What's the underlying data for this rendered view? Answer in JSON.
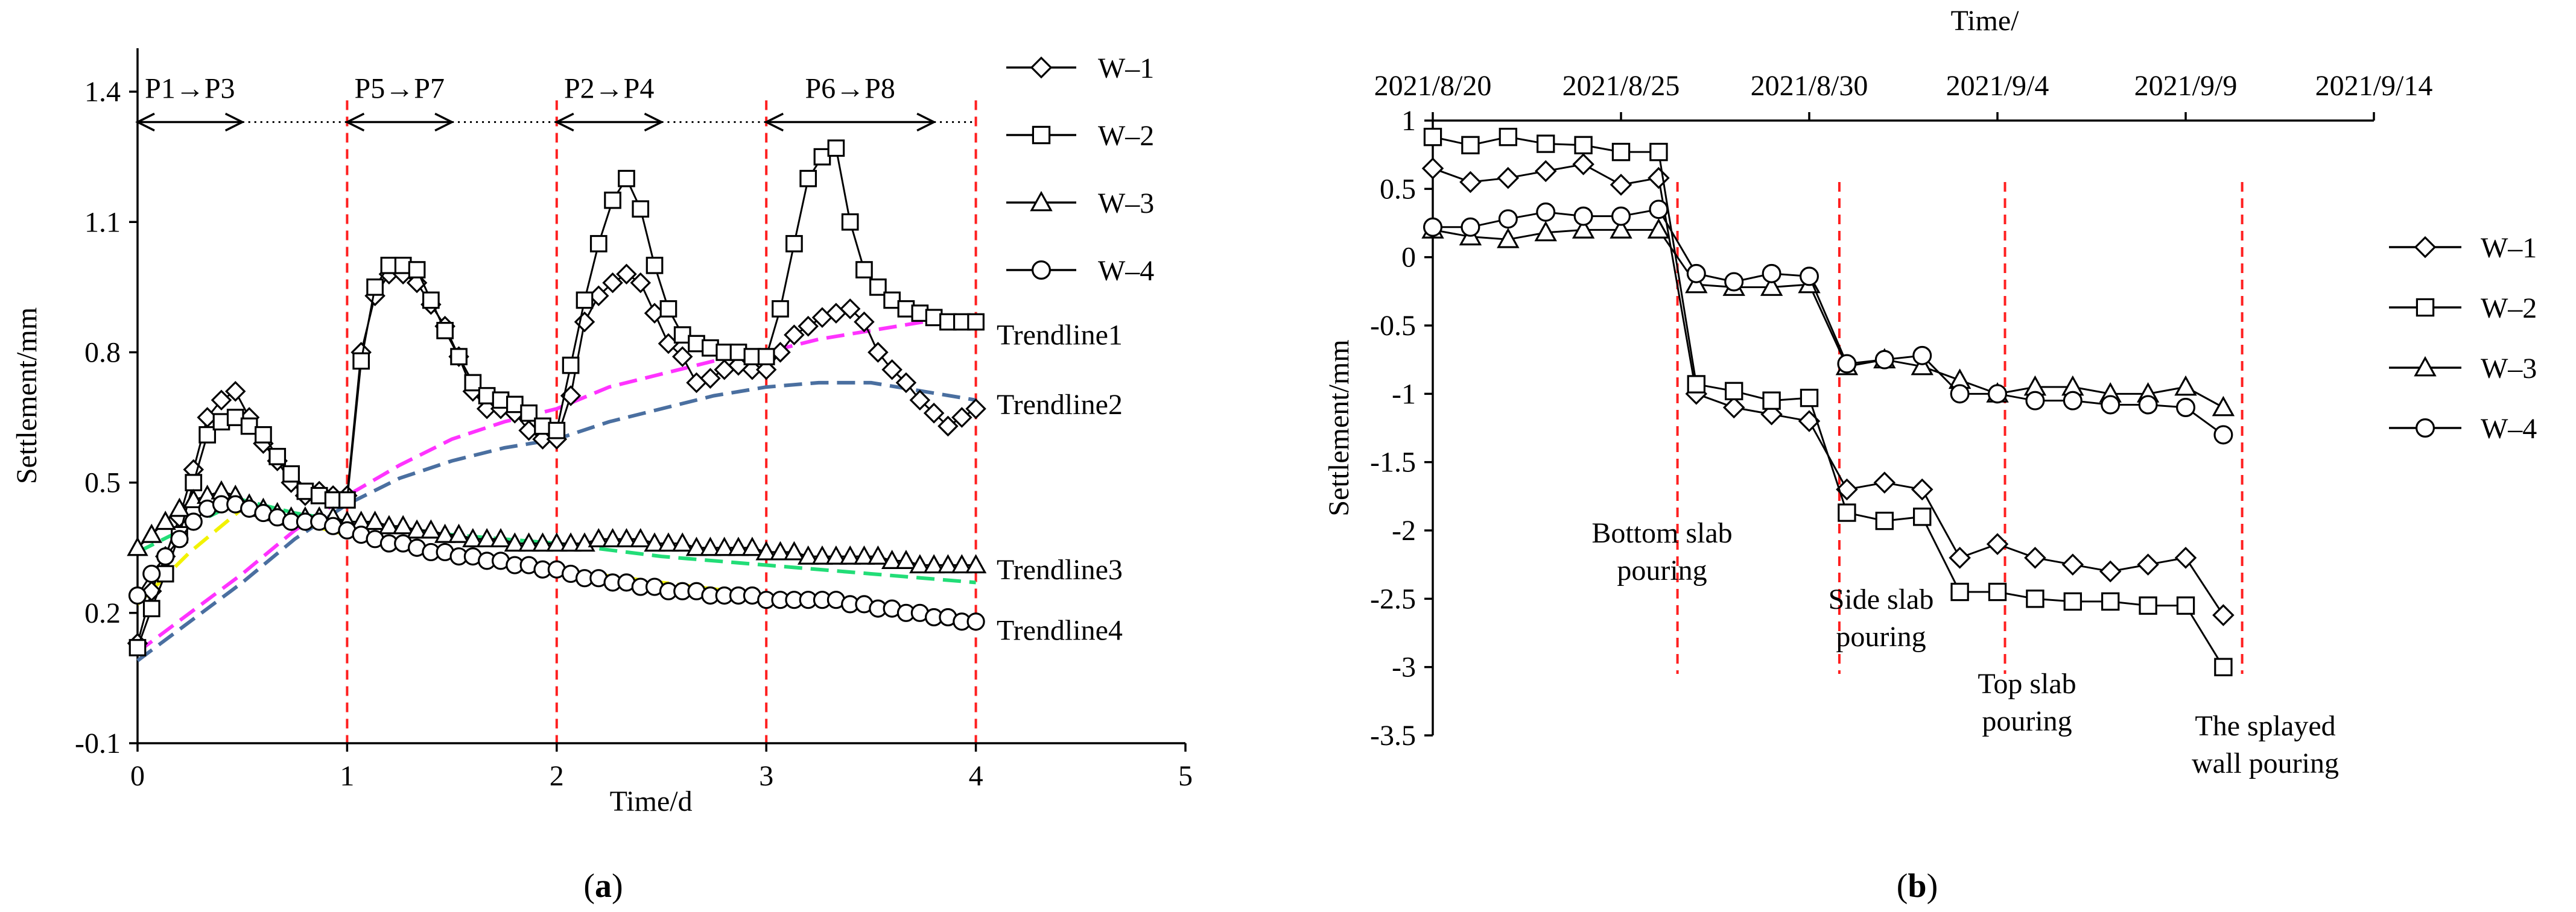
{
  "colors": {
    "series": "#000000",
    "event_line": "#ff1f1f",
    "trendline1": "#ff33ff",
    "trendline2": "#4a6fa0",
    "trendline3": "#22dd77",
    "trendline4": "#f2f200"
  },
  "chart_data": [
    {
      "type": "line",
      "panel": "a",
      "panel_label": {
        "open": "(",
        "letter": "a",
        "close": ")"
      },
      "xlabel": "Time/d",
      "ylabel": "Settlement/mm",
      "xlim": [
        0,
        5
      ],
      "ylim": [
        -0.1,
        1.5
      ],
      "xticks": [
        "0",
        "1",
        "2",
        "3",
        "4",
        "5"
      ],
      "xtick_values": [
        0,
        1,
        2,
        3,
        4,
        5
      ],
      "yticks": [
        "-0.1",
        "0.2",
        "0.5",
        "0.8",
        "1.1",
        "1.4"
      ],
      "ytick_values": [
        -0.1,
        0.2,
        0.5,
        0.8,
        1.1,
        1.4
      ],
      "event_lines_x": [
        1,
        2,
        3,
        4
      ],
      "phases": [
        {
          "label": "P1→P3",
          "x_start": 0,
          "x_arrow_end": 0.5,
          "x_dot_end": 1
        },
        {
          "label": "P5→P7",
          "x_start": 1,
          "x_arrow_end": 1.5,
          "x_dot_end": 2
        },
        {
          "label": "P2→P4",
          "x_start": 2,
          "x_arrow_end": 2.5,
          "x_dot_end": 3
        },
        {
          "label": "P6→P8",
          "x_start": 3,
          "x_arrow_end": 3.8,
          "x_dot_end": 4
        }
      ],
      "phase_y": 1.33,
      "series": [
        {
          "name": "W–1",
          "marker": "diamond",
          "x": [
            0,
            0.067,
            0.133,
            0.2,
            0.267,
            0.333,
            0.4,
            0.467,
            0.533,
            0.6,
            0.667,
            0.733,
            0.8,
            0.867,
            0.933,
            1,
            1.067,
            1.133,
            1.2,
            1.267,
            1.333,
            1.4,
            1.467,
            1.533,
            1.6,
            1.667,
            1.733,
            1.8,
            1.867,
            1.933,
            2,
            2.067,
            2.133,
            2.2,
            2.267,
            2.333,
            2.4,
            2.467,
            2.533,
            2.6,
            2.667,
            2.733,
            2.8,
            2.867,
            2.933,
            3,
            3.067,
            3.133,
            3.2,
            3.267,
            3.333,
            3.4,
            3.467,
            3.533,
            3.6,
            3.667,
            3.733,
            3.8,
            3.867,
            3.933,
            4
          ],
          "y": [
            0.13,
            0.25,
            0.33,
            0.42,
            0.53,
            0.65,
            0.69,
            0.71,
            0.65,
            0.59,
            0.55,
            0.5,
            0.47,
            0.48,
            0.47,
            0.47,
            0.8,
            0.93,
            0.98,
            0.98,
            0.96,
            0.91,
            0.86,
            0.79,
            0.71,
            0.67,
            0.67,
            0.66,
            0.62,
            0.6,
            0.6,
            0.7,
            0.87,
            0.93,
            0.96,
            0.98,
            0.96,
            0.89,
            0.82,
            0.79,
            0.73,
            0.74,
            0.76,
            0.77,
            0.76,
            0.76,
            0.8,
            0.84,
            0.86,
            0.88,
            0.89,
            0.9,
            0.87,
            0.8,
            0.76,
            0.73,
            0.69,
            0.66,
            0.63,
            0.65,
            0.67
          ]
        },
        {
          "name": "W–2",
          "marker": "square",
          "x": [
            0,
            0.067,
            0.133,
            0.2,
            0.267,
            0.333,
            0.4,
            0.467,
            0.533,
            0.6,
            0.667,
            0.733,
            0.8,
            0.867,
            0.933,
            1,
            1.067,
            1.133,
            1.2,
            1.267,
            1.333,
            1.4,
            1.467,
            1.533,
            1.6,
            1.667,
            1.733,
            1.8,
            1.867,
            1.933,
            2,
            2.067,
            2.133,
            2.2,
            2.267,
            2.333,
            2.4,
            2.467,
            2.533,
            2.6,
            2.667,
            2.733,
            2.8,
            2.867,
            2.933,
            3,
            3.067,
            3.133,
            3.2,
            3.267,
            3.333,
            3.4,
            3.467,
            3.533,
            3.6,
            3.667,
            3.733,
            3.8,
            3.867,
            3.933,
            4
          ],
          "y": [
            0.12,
            0.21,
            0.29,
            0.38,
            0.5,
            0.61,
            0.64,
            0.65,
            0.63,
            0.61,
            0.56,
            0.52,
            0.48,
            0.47,
            0.46,
            0.46,
            0.78,
            0.95,
            1.0,
            1.0,
            0.99,
            0.92,
            0.85,
            0.79,
            0.73,
            0.7,
            0.69,
            0.68,
            0.66,
            0.63,
            0.62,
            0.77,
            0.92,
            1.05,
            1.15,
            1.2,
            1.13,
            1.0,
            0.9,
            0.84,
            0.82,
            0.81,
            0.8,
            0.8,
            0.79,
            0.79,
            0.9,
            1.05,
            1.2,
            1.25,
            1.27,
            1.1,
            0.99,
            0.95,
            0.92,
            0.9,
            0.89,
            0.88,
            0.87,
            0.87,
            0.87
          ]
        },
        {
          "name": "W–3",
          "marker": "triangle",
          "x": [
            0,
            0.067,
            0.133,
            0.2,
            0.267,
            0.333,
            0.4,
            0.467,
            0.533,
            0.6,
            0.667,
            0.733,
            0.8,
            0.867,
            0.933,
            1,
            1.067,
            1.133,
            1.2,
            1.267,
            1.333,
            1.4,
            1.467,
            1.533,
            1.6,
            1.667,
            1.733,
            1.8,
            1.867,
            1.933,
            2,
            2.067,
            2.133,
            2.2,
            2.267,
            2.333,
            2.4,
            2.467,
            2.533,
            2.6,
            2.667,
            2.733,
            2.8,
            2.867,
            2.933,
            3,
            3.067,
            3.133,
            3.2,
            3.267,
            3.333,
            3.4,
            3.467,
            3.533,
            3.6,
            3.667,
            3.733,
            3.8,
            3.867,
            3.933,
            4
          ],
          "y": [
            0.35,
            0.38,
            0.41,
            0.44,
            0.46,
            0.47,
            0.48,
            0.47,
            0.45,
            0.44,
            0.43,
            0.42,
            0.42,
            0.42,
            0.42,
            0.41,
            0.41,
            0.41,
            0.4,
            0.4,
            0.39,
            0.39,
            0.38,
            0.38,
            0.37,
            0.37,
            0.37,
            0.36,
            0.36,
            0.36,
            0.36,
            0.36,
            0.36,
            0.37,
            0.37,
            0.37,
            0.37,
            0.36,
            0.36,
            0.36,
            0.35,
            0.35,
            0.35,
            0.35,
            0.35,
            0.34,
            0.34,
            0.34,
            0.33,
            0.33,
            0.33,
            0.33,
            0.33,
            0.33,
            0.32,
            0.32,
            0.31,
            0.31,
            0.31,
            0.31,
            0.31
          ]
        },
        {
          "name": "W–4",
          "marker": "circle",
          "x": [
            0,
            0.067,
            0.133,
            0.2,
            0.267,
            0.333,
            0.4,
            0.467,
            0.533,
            0.6,
            0.667,
            0.733,
            0.8,
            0.867,
            0.933,
            1,
            1.067,
            1.133,
            1.2,
            1.267,
            1.333,
            1.4,
            1.467,
            1.533,
            1.6,
            1.667,
            1.733,
            1.8,
            1.867,
            1.933,
            2,
            2.067,
            2.133,
            2.2,
            2.267,
            2.333,
            2.4,
            2.467,
            2.533,
            2.6,
            2.667,
            2.733,
            2.8,
            2.867,
            2.933,
            3,
            3.067,
            3.133,
            3.2,
            3.267,
            3.333,
            3.4,
            3.467,
            3.533,
            3.6,
            3.667,
            3.733,
            3.8,
            3.867,
            3.933,
            4
          ],
          "y": [
            0.24,
            0.29,
            0.33,
            0.37,
            0.41,
            0.44,
            0.45,
            0.45,
            0.44,
            0.43,
            0.42,
            0.41,
            0.41,
            0.41,
            0.4,
            0.39,
            0.38,
            0.37,
            0.36,
            0.36,
            0.35,
            0.34,
            0.34,
            0.33,
            0.33,
            0.32,
            0.32,
            0.31,
            0.31,
            0.3,
            0.3,
            0.29,
            0.28,
            0.28,
            0.27,
            0.27,
            0.26,
            0.26,
            0.25,
            0.25,
            0.25,
            0.24,
            0.24,
            0.24,
            0.24,
            0.23,
            0.23,
            0.23,
            0.23,
            0.23,
            0.23,
            0.22,
            0.22,
            0.21,
            0.21,
            0.2,
            0.2,
            0.19,
            0.19,
            0.18,
            0.18
          ]
        }
      ],
      "trendlines": [
        {
          "name": "Trendline1",
          "color_key": "trendline1",
          "x": [
            0,
            0.25,
            0.5,
            0.75,
            1,
            1.25,
            1.5,
            1.75,
            2,
            2.25,
            2.5,
            2.75,
            3,
            3.25,
            3.5,
            3.75,
            4
          ],
          "y": [
            0.11,
            0.2,
            0.29,
            0.39,
            0.47,
            0.54,
            0.6,
            0.64,
            0.67,
            0.72,
            0.75,
            0.78,
            0.8,
            0.83,
            0.85,
            0.87,
            0.88
          ]
        },
        {
          "name": "Trendline2",
          "color_key": "trendline2",
          "x": [
            0,
            0.25,
            0.5,
            0.75,
            1,
            1.25,
            1.5,
            1.75,
            2,
            2.25,
            2.5,
            2.75,
            3,
            3.25,
            3.5,
            3.75,
            4
          ],
          "y": [
            0.09,
            0.18,
            0.27,
            0.37,
            0.45,
            0.51,
            0.55,
            0.58,
            0.6,
            0.64,
            0.67,
            0.7,
            0.72,
            0.73,
            0.73,
            0.71,
            0.69
          ]
        },
        {
          "name": "Trendline3",
          "color_key": "trendline3",
          "x": [
            0,
            0.25,
            0.5,
            0.75,
            1,
            1.5,
            2,
            2.5,
            3,
            3.5,
            4
          ],
          "y": [
            0.34,
            0.4,
            0.46,
            0.43,
            0.41,
            0.38,
            0.36,
            0.33,
            0.31,
            0.29,
            0.27
          ]
        },
        {
          "name": "Trendline4",
          "color_key": "trendline4",
          "x": [
            0,
            0.25,
            0.5,
            0.75,
            1,
            1.5,
            2,
            2.5,
            3,
            3.5,
            4
          ],
          "y": [
            0.22,
            0.34,
            0.44,
            0.41,
            0.38,
            0.34,
            0.3,
            0.27,
            0.24,
            0.21,
            0.18
          ]
        }
      ],
      "trend_labels": [
        {
          "text": "Trendline1",
          "anchor_y": 0.84
        },
        {
          "text": "Trendline2",
          "anchor_y": 0.68
        },
        {
          "text": "Trendline3",
          "anchor_y": 0.3
        },
        {
          "text": "Trendline4",
          "anchor_y": 0.16
        }
      ],
      "legend": [
        "W–1",
        "W–2",
        "W–3",
        "W–4"
      ],
      "legend_position": "top-right outside"
    },
    {
      "type": "line",
      "panel": "b",
      "panel_label": {
        "open": "(",
        "letter": "b",
        "close": ")"
      },
      "xlabel": "Time/",
      "ylabel": "Settlement/mm",
      "x_axis_position": "top",
      "x_start_date": "2021/8/20",
      "xlim_days": [
        0,
        25
      ],
      "ylim": [
        -3.5,
        1
      ],
      "xticks": [
        "2021/8/20",
        "2021/8/25",
        "2021/8/30",
        "2021/9/4",
        "2021/9/9",
        "2021/9/14"
      ],
      "xtick_days": [
        0,
        5,
        10,
        15,
        20,
        25
      ],
      "yticks": [
        "1",
        "0.5",
        "0",
        "-0.5",
        "-1",
        "-1.5",
        "-2",
        "-2.5",
        "-3",
        "-3.5"
      ],
      "ytick_values": [
        1,
        0.5,
        0,
        -0.5,
        -1,
        -1.5,
        -2,
        -2.5,
        -3,
        -3.5
      ],
      "event_lines_day": [
        6.5,
        10.8,
        15.2,
        21.5
      ],
      "events": [
        {
          "lines": [
            "Bottom slab",
            "pouring"
          ]
        },
        {
          "lines": [
            "Side slab",
            "pouring"
          ]
        },
        {
          "lines": [
            "Top slab",
            "pouring"
          ]
        },
        {
          "lines": [
            "The splayed",
            "wall pouring"
          ]
        }
      ],
      "series": [
        {
          "name": "W–1",
          "marker": "diamond",
          "x": [
            0,
            1,
            2,
            3,
            4,
            5,
            6,
            7,
            8,
            9,
            10,
            11,
            12,
            13,
            14,
            15,
            16,
            17,
            18,
            19,
            20,
            21,
            22
          ],
          "y": [
            0.65,
            0.55,
            0.58,
            0.63,
            0.68,
            0.53,
            0.58,
            -1.0,
            -1.1,
            -1.15,
            -1.2,
            -1.7,
            -1.65,
            -1.7,
            -2.2,
            -2.1,
            -2.2,
            -2.25,
            -2.3,
            -2.25,
            -2.2,
            -2.62,
            null
          ]
        },
        {
          "name": "W–2",
          "marker": "square",
          "x": [
            0,
            1,
            2,
            3,
            4,
            5,
            6,
            7,
            8,
            9,
            10,
            11,
            12,
            13,
            14,
            15,
            16,
            17,
            18,
            19,
            20,
            21,
            22
          ],
          "y": [
            0.88,
            0.82,
            0.88,
            0.83,
            0.82,
            0.77,
            0.77,
            -0.93,
            -0.98,
            -1.05,
            -1.03,
            -1.87,
            -1.93,
            -1.9,
            -2.45,
            -2.45,
            -2.5,
            -2.52,
            -2.52,
            -2.55,
            -2.55,
            -3.0,
            null
          ]
        },
        {
          "name": "W–3",
          "marker": "triangle",
          "x": [
            0,
            1,
            2,
            3,
            4,
            5,
            6,
            7,
            8,
            9,
            10,
            11,
            12,
            13,
            14,
            15,
            16,
            17,
            18,
            19,
            20,
            21,
            22
          ],
          "y": [
            0.2,
            0.15,
            0.13,
            0.18,
            0.2,
            0.2,
            0.2,
            -0.2,
            -0.22,
            -0.22,
            -0.2,
            -0.8,
            -0.75,
            -0.8,
            -0.9,
            -1.0,
            -0.95,
            -0.95,
            -1.0,
            -1.0,
            -0.95,
            -1.1,
            null
          ]
        },
        {
          "name": "W–4",
          "marker": "circle",
          "x": [
            0,
            1,
            2,
            3,
            4,
            5,
            6,
            7,
            8,
            9,
            10,
            11,
            12,
            13,
            14,
            15,
            16,
            17,
            18,
            19,
            20,
            21,
            22
          ],
          "y": [
            0.22,
            0.22,
            0.28,
            0.33,
            0.3,
            0.3,
            0.35,
            -0.12,
            -0.18,
            -0.12,
            -0.14,
            -0.78,
            -0.75,
            -0.72,
            -1.0,
            -1.0,
            -1.05,
            -1.05,
            -1.08,
            -1.08,
            -1.1,
            -1.3,
            null
          ]
        }
      ],
      "legend": [
        "W–1",
        "W–2",
        "W–3",
        "W–4"
      ],
      "legend_position": "right outside"
    }
  ]
}
